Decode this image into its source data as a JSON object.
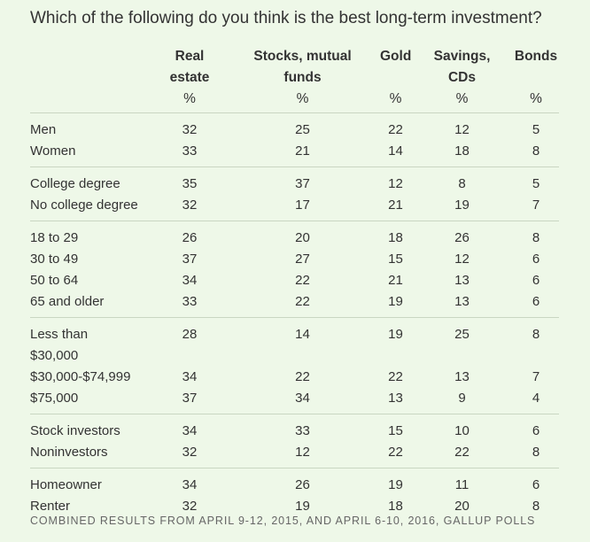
{
  "title": "Which of the following do you think is the best long-term investment?",
  "chart_data": {
    "type": "table",
    "columns": [
      {
        "lines": [
          "Real",
          "estate"
        ],
        "unit": "%"
      },
      {
        "lines": [
          "Stocks, mutual",
          "funds"
        ],
        "unit": "%"
      },
      {
        "lines": [
          "Gold"
        ],
        "unit": "%"
      },
      {
        "lines": [
          "Savings,",
          "CDs"
        ],
        "unit": "%"
      },
      {
        "lines": [
          "Bonds"
        ],
        "unit": "%"
      }
    ],
    "groups": [
      {
        "rows": [
          {
            "label": [
              "Men"
            ],
            "values": [
              32,
              25,
              22,
              12,
              5
            ]
          },
          {
            "label": [
              "Women"
            ],
            "values": [
              33,
              21,
              14,
              18,
              8
            ]
          }
        ]
      },
      {
        "rows": [
          {
            "label": [
              "College degree"
            ],
            "values": [
              35,
              37,
              12,
              8,
              5
            ]
          },
          {
            "label": [
              "No college degree"
            ],
            "values": [
              32,
              17,
              21,
              19,
              7
            ]
          }
        ]
      },
      {
        "rows": [
          {
            "label": [
              "18 to 29"
            ],
            "values": [
              26,
              20,
              18,
              26,
              8
            ]
          },
          {
            "label": [
              "30 to 49"
            ],
            "values": [
              37,
              27,
              15,
              12,
              6
            ]
          },
          {
            "label": [
              "50 to 64"
            ],
            "values": [
              34,
              22,
              21,
              13,
              6
            ]
          },
          {
            "label": [
              "65 and older"
            ],
            "values": [
              33,
              22,
              19,
              13,
              6
            ]
          }
        ]
      },
      {
        "rows": [
          {
            "label": [
              "Less than",
              "$30,000"
            ],
            "values": [
              28,
              14,
              19,
              25,
              8
            ]
          },
          {
            "label": [
              "$30,000-$74,999"
            ],
            "values": [
              34,
              22,
              22,
              13,
              7
            ]
          },
          {
            "label": [
              "$75,000"
            ],
            "values": [
              37,
              34,
              13,
              9,
              4
            ]
          }
        ]
      },
      {
        "rows": [
          {
            "label": [
              "Stock investors"
            ],
            "values": [
              34,
              33,
              15,
              10,
              6
            ]
          },
          {
            "label": [
              "Noninvestors"
            ],
            "values": [
              32,
              12,
              22,
              22,
              8
            ]
          }
        ]
      },
      {
        "rows": [
          {
            "label": [
              "Homeowner"
            ],
            "values": [
              34,
              26,
              19,
              11,
              6
            ]
          },
          {
            "label": [
              "Renter"
            ],
            "values": [
              32,
              19,
              18,
              20,
              8
            ]
          }
        ]
      }
    ]
  },
  "source_note": "COMBINED RESULTS FROM APRIL 9-12, 2015, AND APRIL 6-10, 2016, GALLUP POLLS"
}
